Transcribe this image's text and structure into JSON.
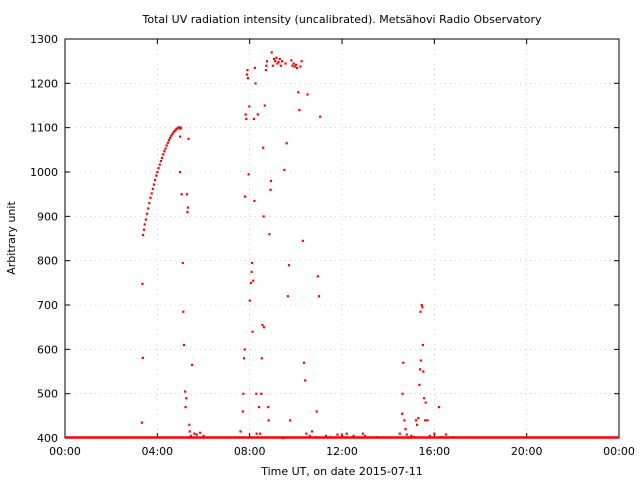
{
  "chart_data": {
    "type": "scatter",
    "title": "Total UV radiation intensity (uncalibrated). Metsähovi Radio Observatory",
    "xlabel": "Time UT, on date 2015-07-11",
    "ylabel": "Arbitrary unit",
    "xlim": [
      0,
      24
    ],
    "ylim": [
      400,
      1300
    ],
    "x_ticks": [
      0,
      4,
      8,
      12,
      16,
      20,
      24
    ],
    "x_tick_labels": [
      "00:00",
      "04:00",
      "08:00",
      "12:00",
      "16:00",
      "20:00",
      "00:00"
    ],
    "y_ticks": [
      400,
      500,
      600,
      700,
      800,
      900,
      1000,
      1100,
      1200,
      1300
    ],
    "y_tick_labels": [
      "400",
      "500",
      "600",
      "700",
      "800",
      "900",
      "1000",
      "1100",
      "1200",
      "1300"
    ],
    "grid": true,
    "marker_color": "#ff0000",
    "points": [
      [
        3.33,
        435
      ],
      [
        3.35,
        748
      ],
      [
        3.37,
        581
      ],
      [
        3.38,
        858
      ],
      [
        3.42,
        870
      ],
      [
        3.45,
        882
      ],
      [
        3.5,
        893
      ],
      [
        3.55,
        906
      ],
      [
        3.6,
        918
      ],
      [
        3.65,
        930
      ],
      [
        3.7,
        942
      ],
      [
        3.75,
        952
      ],
      [
        3.8,
        962
      ],
      [
        3.85,
        972
      ],
      [
        3.9,
        982
      ],
      [
        3.95,
        992
      ],
      [
        4.0,
        1000
      ],
      [
        4.05,
        1009
      ],
      [
        4.1,
        1017
      ],
      [
        4.15,
        1025
      ],
      [
        4.2,
        1032
      ],
      [
        4.25,
        1040
      ],
      [
        4.3,
        1047
      ],
      [
        4.35,
        1053
      ],
      [
        4.4,
        1060
      ],
      [
        4.45,
        1066
      ],
      [
        4.5,
        1072
      ],
      [
        4.55,
        1077
      ],
      [
        4.6,
        1082
      ],
      [
        4.65,
        1086
      ],
      [
        4.7,
        1090
      ],
      [
        4.75,
        1093
      ],
      [
        4.8,
        1096
      ],
      [
        4.85,
        1098
      ],
      [
        4.9,
        1100
      ],
      [
        4.95,
        1101
      ],
      [
        4.98,
        1080
      ],
      [
        5.0,
        1098
      ],
      [
        5.02,
        1100
      ],
      [
        4.98,
        1000
      ],
      [
        5.05,
        950
      ],
      [
        5.1,
        795
      ],
      [
        5.12,
        685
      ],
      [
        5.15,
        610
      ],
      [
        5.2,
        505
      ],
      [
        5.22,
        470
      ],
      [
        5.25,
        490
      ],
      [
        5.28,
        950
      ],
      [
        5.3,
        910
      ],
      [
        5.32,
        920
      ],
      [
        5.35,
        1075
      ],
      [
        5.38,
        430
      ],
      [
        5.4,
        415
      ],
      [
        5.45,
        405
      ],
      [
        5.5,
        565
      ],
      [
        5.6,
        410
      ],
      [
        5.7,
        408
      ],
      [
        5.85,
        412
      ],
      [
        6.0,
        405
      ],
      [
        7.6,
        415
      ],
      [
        7.7,
        460
      ],
      [
        7.72,
        500
      ],
      [
        7.75,
        580
      ],
      [
        7.78,
        600
      ],
      [
        7.8,
        945
      ],
      [
        7.82,
        1130
      ],
      [
        7.85,
        1120
      ],
      [
        7.88,
        1220
      ],
      [
        7.9,
        1230
      ],
      [
        7.92,
        1212
      ],
      [
        7.95,
        995
      ],
      [
        7.98,
        1148
      ],
      [
        8.0,
        710
      ],
      [
        8.05,
        750
      ],
      [
        8.08,
        775
      ],
      [
        8.1,
        795
      ],
      [
        8.12,
        640
      ],
      [
        8.15,
        755
      ],
      [
        8.18,
        1120
      ],
      [
        8.2,
        935
      ],
      [
        8.22,
        1235
      ],
      [
        8.25,
        1200
      ],
      [
        8.28,
        500
      ],
      [
        8.3,
        410
      ],
      [
        8.35,
        1130
      ],
      [
        8.4,
        470
      ],
      [
        8.45,
        410
      ],
      [
        8.5,
        500
      ],
      [
        8.52,
        580
      ],
      [
        8.55,
        655
      ],
      [
        8.58,
        1055
      ],
      [
        8.6,
        900
      ],
      [
        8.62,
        650
      ],
      [
        8.65,
        1150
      ],
      [
        8.7,
        1230
      ],
      [
        8.72,
        1240
      ],
      [
        8.75,
        1250
      ],
      [
        8.8,
        470
      ],
      [
        8.82,
        440
      ],
      [
        8.85,
        860
      ],
      [
        8.9,
        960
      ],
      [
        8.92,
        980
      ],
      [
        8.95,
        1270
      ],
      [
        9.0,
        1240
      ],
      [
        9.05,
        1255
      ],
      [
        9.1,
        1250
      ],
      [
        9.15,
        1258
      ],
      [
        9.2,
        1245
      ],
      [
        9.25,
        1248
      ],
      [
        9.3,
        1255
      ],
      [
        9.35,
        1240
      ],
      [
        9.4,
        1250
      ],
      [
        9.45,
        400
      ],
      [
        9.5,
        1005
      ],
      [
        9.55,
        1245
      ],
      [
        9.6,
        1065
      ],
      [
        9.65,
        720
      ],
      [
        9.7,
        790
      ],
      [
        9.75,
        440
      ],
      [
        9.8,
        1252
      ],
      [
        9.85,
        1240
      ],
      [
        9.9,
        1245
      ],
      [
        9.95,
        1238
      ],
      [
        10.0,
        1242
      ],
      [
        10.05,
        1235
      ],
      [
        10.1,
        1180
      ],
      [
        10.15,
        1140
      ],
      [
        10.2,
        1238
      ],
      [
        10.25,
        1250
      ],
      [
        10.3,
        845
      ],
      [
        10.35,
        570
      ],
      [
        10.4,
        530
      ],
      [
        10.45,
        410
      ],
      [
        10.5,
        1175
      ],
      [
        10.6,
        405
      ],
      [
        10.7,
        415
      ],
      [
        10.9,
        460
      ],
      [
        10.95,
        765
      ],
      [
        11.0,
        720
      ],
      [
        11.05,
        1125
      ],
      [
        11.3,
        405
      ],
      [
        11.5,
        402
      ],
      [
        11.8,
        408
      ],
      [
        12.0,
        405
      ],
      [
        12.2,
        410
      ],
      [
        12.5,
        405
      ],
      [
        12.9,
        410
      ],
      [
        13.0,
        405
      ],
      [
        13.5,
        402
      ],
      [
        14.5,
        410
      ],
      [
        14.6,
        455
      ],
      [
        14.62,
        500
      ],
      [
        14.65,
        570
      ],
      [
        14.7,
        440
      ],
      [
        14.75,
        420
      ],
      [
        14.8,
        408
      ],
      [
        15.0,
        405
      ],
      [
        15.1,
        402
      ],
      [
        15.2,
        440
      ],
      [
        15.25,
        430
      ],
      [
        15.3,
        445
      ],
      [
        15.35,
        520
      ],
      [
        15.38,
        555
      ],
      [
        15.4,
        685
      ],
      [
        15.42,
        575
      ],
      [
        15.45,
        700
      ],
      [
        15.48,
        695
      ],
      [
        15.5,
        610
      ],
      [
        15.52,
        550
      ],
      [
        15.55,
        490
      ],
      [
        15.6,
        440
      ],
      [
        15.62,
        480
      ],
      [
        15.7,
        440
      ],
      [
        15.8,
        405
      ],
      [
        16.0,
        410
      ],
      [
        16.2,
        470
      ],
      [
        16.3,
        402
      ],
      [
        16.5,
        408
      ],
      [
        16.8,
        402
      ]
    ]
  }
}
